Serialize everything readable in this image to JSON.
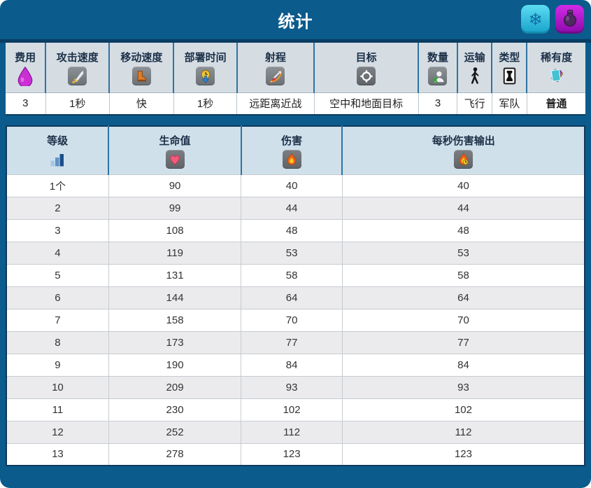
{
  "header": {
    "title": "统计"
  },
  "toolbar": {
    "icons": [
      "snowflake-icon",
      "potion-icon"
    ]
  },
  "stats_table": {
    "columns": [
      {
        "label": "费用",
        "icon": "elixir-icon"
      },
      {
        "label": "攻击速度",
        "icon": "sword-icon"
      },
      {
        "label": "移动速度",
        "icon": "boot-icon"
      },
      {
        "label": "部署时间",
        "icon": "deploy-time-icon"
      },
      {
        "label": "射程",
        "icon": "bow-icon"
      },
      {
        "label": "目标",
        "icon": "target-icon"
      },
      {
        "label": "数量",
        "icon": "count-icon"
      },
      {
        "label": "运输",
        "icon": "transport-icon"
      },
      {
        "label": "类型",
        "icon": "card-type-icon"
      },
      {
        "label": "稀有度",
        "icon": "rarity-icon"
      }
    ],
    "values": [
      "3",
      "1秒",
      "快",
      "1秒",
      "远距离近战",
      "空中和地面目标",
      "3",
      "飞行",
      "军队",
      "普通"
    ]
  },
  "level_table": {
    "columns": [
      {
        "label": "等级",
        "icon": "level-bars-icon"
      },
      {
        "label": "生命值",
        "icon": "heart-icon"
      },
      {
        "label": "伤害",
        "icon": "flame-icon"
      },
      {
        "label": "每秒伤害输出",
        "icon": "flame-clock-icon"
      }
    ],
    "rows": [
      [
        "1个",
        "90",
        "40",
        "40"
      ],
      [
        "2",
        "99",
        "44",
        "44"
      ],
      [
        "3",
        "108",
        "48",
        "48"
      ],
      [
        "4",
        "119",
        "53",
        "53"
      ],
      [
        "5",
        "131",
        "58",
        "58"
      ],
      [
        "6",
        "144",
        "64",
        "64"
      ],
      [
        "7",
        "158",
        "70",
        "70"
      ],
      [
        "8",
        "173",
        "77",
        "77"
      ],
      [
        "9",
        "190",
        "84",
        "84"
      ],
      [
        "10",
        "209",
        "93",
        "93"
      ],
      [
        "11",
        "230",
        "102",
        "102"
      ],
      [
        "12",
        "252",
        "112",
        "112"
      ],
      [
        "13",
        "278",
        "123",
        "123"
      ]
    ]
  },
  "colors": {
    "frame_blue": "#0b5b8c",
    "divider_navy": "#093d62",
    "link_blue": "#2a6db5",
    "button_cyan": "#2cc4e4",
    "button_purple": "#b517ce"
  }
}
